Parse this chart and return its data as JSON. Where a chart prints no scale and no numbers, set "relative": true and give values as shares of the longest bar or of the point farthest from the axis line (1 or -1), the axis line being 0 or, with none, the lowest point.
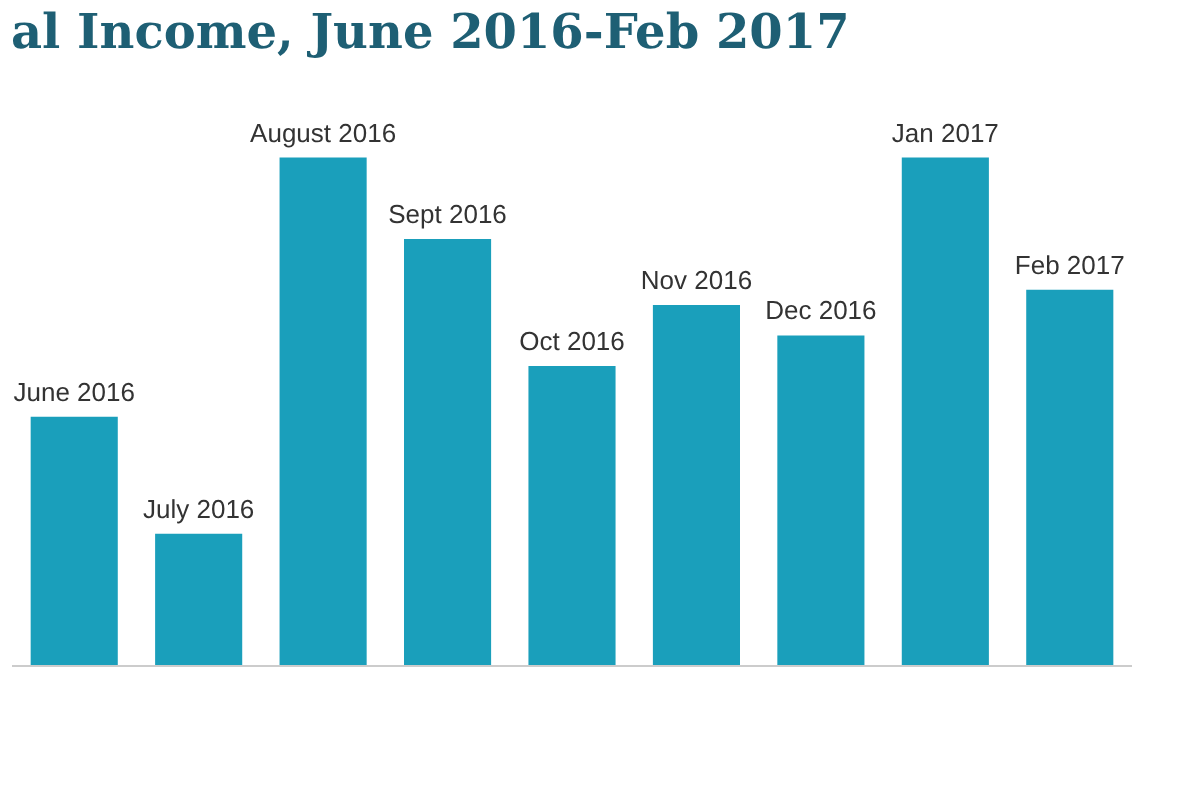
{
  "chart_data": {
    "type": "bar",
    "title": "al Income, June 2016-Feb 2017",
    "relative": true,
    "color": "#1a9fbb",
    "categories": [
      "June 2016",
      "July 2016",
      "August 2016",
      "Sept 2016",
      "Oct 2016",
      "Nov 2016",
      "Dec 2016",
      "Jan 2017",
      "Feb 2017"
    ],
    "values": [
      0.49,
      0.26,
      1,
      0.84,
      0.59,
      0.71,
      0.65,
      1,
      0.74
    ]
  }
}
